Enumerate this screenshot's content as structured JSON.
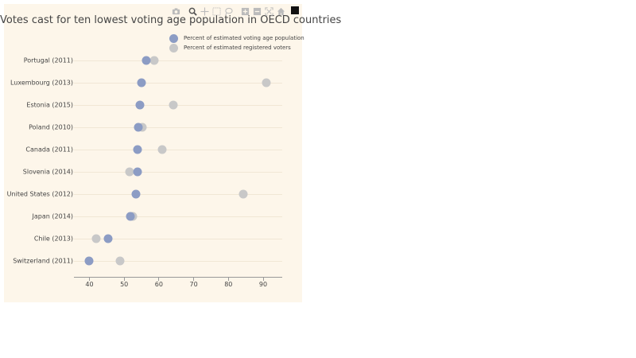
{
  "title": "Votes cast for ten lowest voting age population in OECD countries",
  "modebar": {
    "buttons": [
      {
        "name": "camera-icon",
        "label": "Download plot as a png"
      },
      {
        "name": "zoom-icon",
        "label": "Zoom"
      },
      {
        "name": "pan-icon",
        "label": "Pan"
      },
      {
        "name": "box-select-icon",
        "label": "Box Select"
      },
      {
        "name": "lasso-select-icon",
        "label": "Lasso Select"
      },
      {
        "name": "zoom-in-icon",
        "label": "Zoom in"
      },
      {
        "name": "zoom-out-icon",
        "label": "Zoom out"
      },
      {
        "name": "autoscale-icon",
        "label": "Autoscale"
      },
      {
        "name": "reset-axes-icon",
        "label": "Reset axes"
      }
    ],
    "logo": "plotly-logo-icon"
  },
  "colors": {
    "background": "#fdf6ea",
    "series_voting_age": "#8c9cc4",
    "series_registered": "#c8c8c8",
    "gridline": "#f1e7d5",
    "axis": "#999999"
  },
  "chart_data": {
    "type": "scatter",
    "subtype": "dot-plot",
    "title": "Votes cast for ten lowest voting age population in OECD countries",
    "xlabel": "",
    "ylabel": "",
    "xlim": [
      35.5,
      95.5
    ],
    "xticks": [
      40,
      50,
      60,
      70,
      80,
      90
    ],
    "grid": "horizontal row lines",
    "legend_position": "top-right",
    "categories": [
      "Portugal (2011)",
      "Luxembourg (2013)",
      "Estonia (2015)",
      "Poland (2010)",
      "Canada (2011)",
      "Slovenia (2014)",
      "United States (2012)",
      "Japan (2014)",
      "Chile (2013)",
      "Switzerland (2011)"
    ],
    "series": [
      {
        "name": "Percent of estimated voting age population",
        "color": "#8c9cc4",
        "values": [
          56.5,
          55.1,
          54.6,
          54.2,
          54.0,
          54.0,
          53.5,
          51.9,
          45.5,
          40.0
        ]
      },
      {
        "name": "Percent of estimated registered voters",
        "color": "#c8c8c8",
        "values": [
          58.8,
          91.0,
          64.2,
          55.3,
          61.1,
          51.7,
          84.4,
          52.6,
          42.1,
          48.9
        ]
      }
    ]
  }
}
